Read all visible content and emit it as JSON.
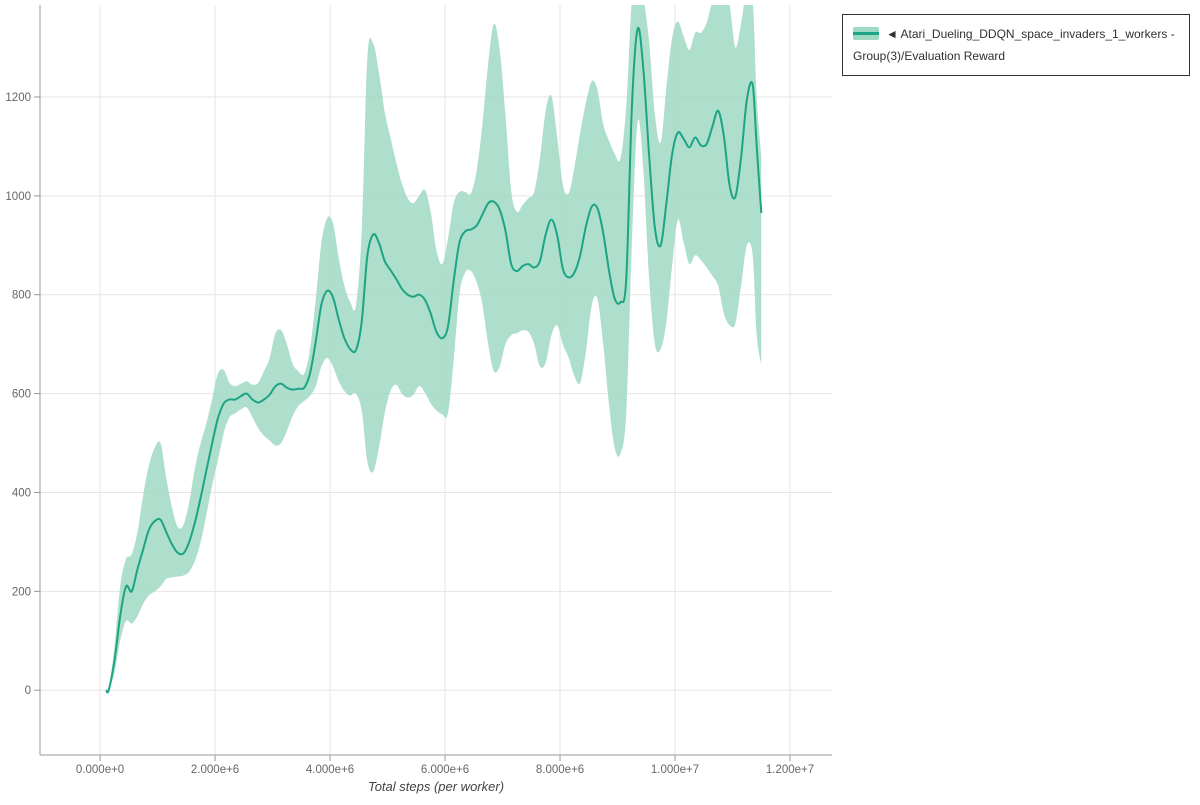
{
  "page": {
    "background": "#ffffff"
  },
  "legend": {
    "position": "top-right",
    "items": [
      {
        "label": "◄ Atari_Dueling_DDQN_space_invaders_1_workers - Group(3)/Evaluation Reward",
        "line_color": "#1ca485",
        "band_color": "#a0d9c3"
      }
    ]
  },
  "chart_data": {
    "type": "line",
    "title": "",
    "xlabel": "Total steps (per worker)",
    "ylabel": "",
    "grid": true,
    "legend_position": "top-right",
    "xlim": [
      -1045000,
      12730000
    ],
    "ylim": [
      -131,
      1386
    ],
    "x_ticks": [
      {
        "value": 0.0,
        "label": "0.000e+0"
      },
      {
        "value": 2000000.0,
        "label": "2.000e+6"
      },
      {
        "value": 4000000.0,
        "label": "4.000e+6"
      },
      {
        "value": 6000000.0,
        "label": "6.000e+6"
      },
      {
        "value": 8000000.0,
        "label": "8.000e+6"
      },
      {
        "value": 10000000.0,
        "label": "1.000e+7"
      },
      {
        "value": 12000000.0,
        "label": "1.200e+7"
      }
    ],
    "y_ticks": [
      {
        "value": 0,
        "label": "0"
      },
      {
        "value": 200,
        "label": "200"
      },
      {
        "value": 400,
        "label": "400"
      },
      {
        "value": 600,
        "label": "600"
      },
      {
        "value": 800,
        "label": "800"
      },
      {
        "value": 1000,
        "label": "1000"
      },
      {
        "value": 1200,
        "label": "1200"
      }
    ],
    "series": [
      {
        "name": "◄ Atari_Dueling_DDQN_space_invaders_1_workers - Group(3)/Evaluation Reward",
        "line_color": "#1ca485",
        "band_color": "#a0d9c3",
        "x": [
          100000.0,
          150000.0,
          250000.0,
          350000.0,
          450000.0,
          550000.0,
          650000.0,
          750000.0,
          850000.0,
          950000.0,
          1050000.0,
          1150000.0,
          1250000.0,
          1350000.0,
          1450000.0,
          1550000.0,
          1650000.0,
          1750000.0,
          1850000.0,
          1950000.0,
          2050000.0,
          2150000.0,
          2250000.0,
          2350000.0,
          2450000.0,
          2550000.0,
          2650000.0,
          2750000.0,
          2850000.0,
          2950000.0,
          3050000.0,
          3150000.0,
          3250000.0,
          3350000.0,
          3450000.0,
          3550000.0,
          3650000.0,
          3750000.0,
          3850000.0,
          3950000.0,
          4050000.0,
          4150000.0,
          4250000.0,
          4350000.0,
          4450000.0,
          4550000.0,
          4650000.0,
          4750000.0,
          4850000.0,
          4950000.0,
          5050000.0,
          5150000.0,
          5250000.0,
          5350000.0,
          5450000.0,
          5550000.0,
          5650000.0,
          5750000.0,
          5850000.0,
          5950000.0,
          6050000.0,
          6150000.0,
          6250000.0,
          6350000.0,
          6450000.0,
          6550000.0,
          6650000.0,
          6750000.0,
          6850000.0,
          6950000.0,
          7050000.0,
          7150000.0,
          7250000.0,
          7350000.0,
          7450000.0,
          7550000.0,
          7650000.0,
          7750000.0,
          7850000.0,
          7950000.0,
          8050000.0,
          8150000.0,
          8250000.0,
          8350000.0,
          8450000.0,
          8550000.0,
          8650000.0,
          8750000.0,
          8850000.0,
          8950000.0,
          9050000.0,
          9150000.0,
          9250000.0,
          9350000.0,
          9450000.0,
          9550000.0,
          9650000.0,
          9750000.0,
          9850000.0,
          9950000.0,
          10050000.0,
          10150000.0,
          10250000.0,
          10350000.0,
          10450000.0,
          10550000.0,
          10650000.0,
          10750000.0,
          10850000.0,
          10950000.0,
          11050000.0,
          11150000.0,
          11250000.0,
          11350000.0,
          11420000.0,
          11500000.0
        ],
        "mean": [
          0,
          0,
          60,
          150,
          210,
          200,
          245,
          285,
          325,
          342,
          345,
          320,
          295,
          278,
          277,
          300,
          340,
          390,
          445,
          500,
          550,
          580,
          588,
          588,
          595,
          600,
          588,
          582,
          588,
          598,
          615,
          620,
          612,
          608,
          610,
          612,
          640,
          705,
          780,
          808,
          795,
          750,
          712,
          690,
          688,
          745,
          880,
          922,
          905,
          868,
          850,
          832,
          812,
          800,
          796,
          800,
          790,
          762,
          725,
          712,
          735,
          828,
          905,
          928,
          932,
          940,
          962,
          985,
          988,
          972,
          930,
          862,
          848,
          858,
          862,
          855,
          868,
          922,
          952,
          920,
          852,
          835,
          845,
          880,
          938,
          978,
          975,
          925,
          850,
          792,
          785,
          830,
          1180,
          1338,
          1255,
          1080,
          935,
          900,
          985,
          1085,
          1128,
          1115,
          1098,
          1118,
          1102,
          1105,
          1140,
          1172,
          1120,
          1020,
          998,
          1080,
          1195,
          1225,
          1100,
          965
        ],
        "lower": [
          0,
          0,
          35,
          100,
          140,
          135,
          150,
          175,
          192,
          200,
          210,
          225,
          228,
          230,
          232,
          240,
          262,
          300,
          355,
          415,
          465,
          520,
          552,
          560,
          568,
          572,
          552,
          530,
          515,
          505,
          495,
          500,
          525,
          555,
          575,
          585,
          595,
          615,
          655,
          672,
          655,
          625,
          605,
          596,
          600,
          565,
          462,
          442,
          490,
          560,
          605,
          618,
          600,
          592,
          598,
          615,
          602,
          580,
          566,
          558,
          560,
          668,
          800,
          845,
          848,
          825,
          780,
          700,
          645,
          655,
          700,
          718,
          722,
          728,
          725,
          700,
          655,
          662,
          718,
          738,
          700,
          672,
          635,
          622,
          685,
          778,
          792,
          700,
          580,
          490,
          478,
          560,
          905,
          1150,
          1050,
          830,
          700,
          690,
          745,
          860,
          952,
          905,
          862,
          880,
          870,
          855,
          838,
          818,
          762,
          738,
          742,
          820,
          900,
          880,
          720,
          658
        ],
        "upper": [
          0,
          0,
          90,
          210,
          265,
          275,
          320,
          395,
          455,
          490,
          500,
          430,
          370,
          330,
          335,
          380,
          450,
          500,
          540,
          590,
          640,
          648,
          622,
          615,
          620,
          625,
          618,
          622,
          645,
          672,
          722,
          728,
          700,
          660,
          645,
          640,
          688,
          790,
          905,
          955,
          945,
          875,
          818,
          785,
          778,
          930,
          1280,
          1308,
          1250,
          1170,
          1118,
          1068,
          1025,
          995,
          985,
          1000,
          1012,
          968,
          890,
          862,
          912,
          985,
          1008,
          1008,
          1005,
          1052,
          1145,
          1268,
          1348,
          1295,
          1165,
          1010,
          968,
          982,
          995,
          1008,
          1075,
          1172,
          1202,
          1118,
          1022,
          1005,
          1058,
          1128,
          1188,
          1232,
          1215,
          1145,
          1112,
          1085,
          1075,
          1180,
          1395,
          1430,
          1400,
          1310,
          1165,
          1108,
          1220,
          1320,
          1352,
          1322,
          1295,
          1330,
          1330,
          1350,
          1395,
          1430,
          1430,
          1385,
          1300,
          1350,
          1420,
          1395,
          1200,
          1080
        ]
      }
    ],
    "style": {
      "grid_color": "#e5e5e5",
      "axis_color": "#999999",
      "tick_label_color": "#666666",
      "axis_label_color": "#444444"
    }
  }
}
